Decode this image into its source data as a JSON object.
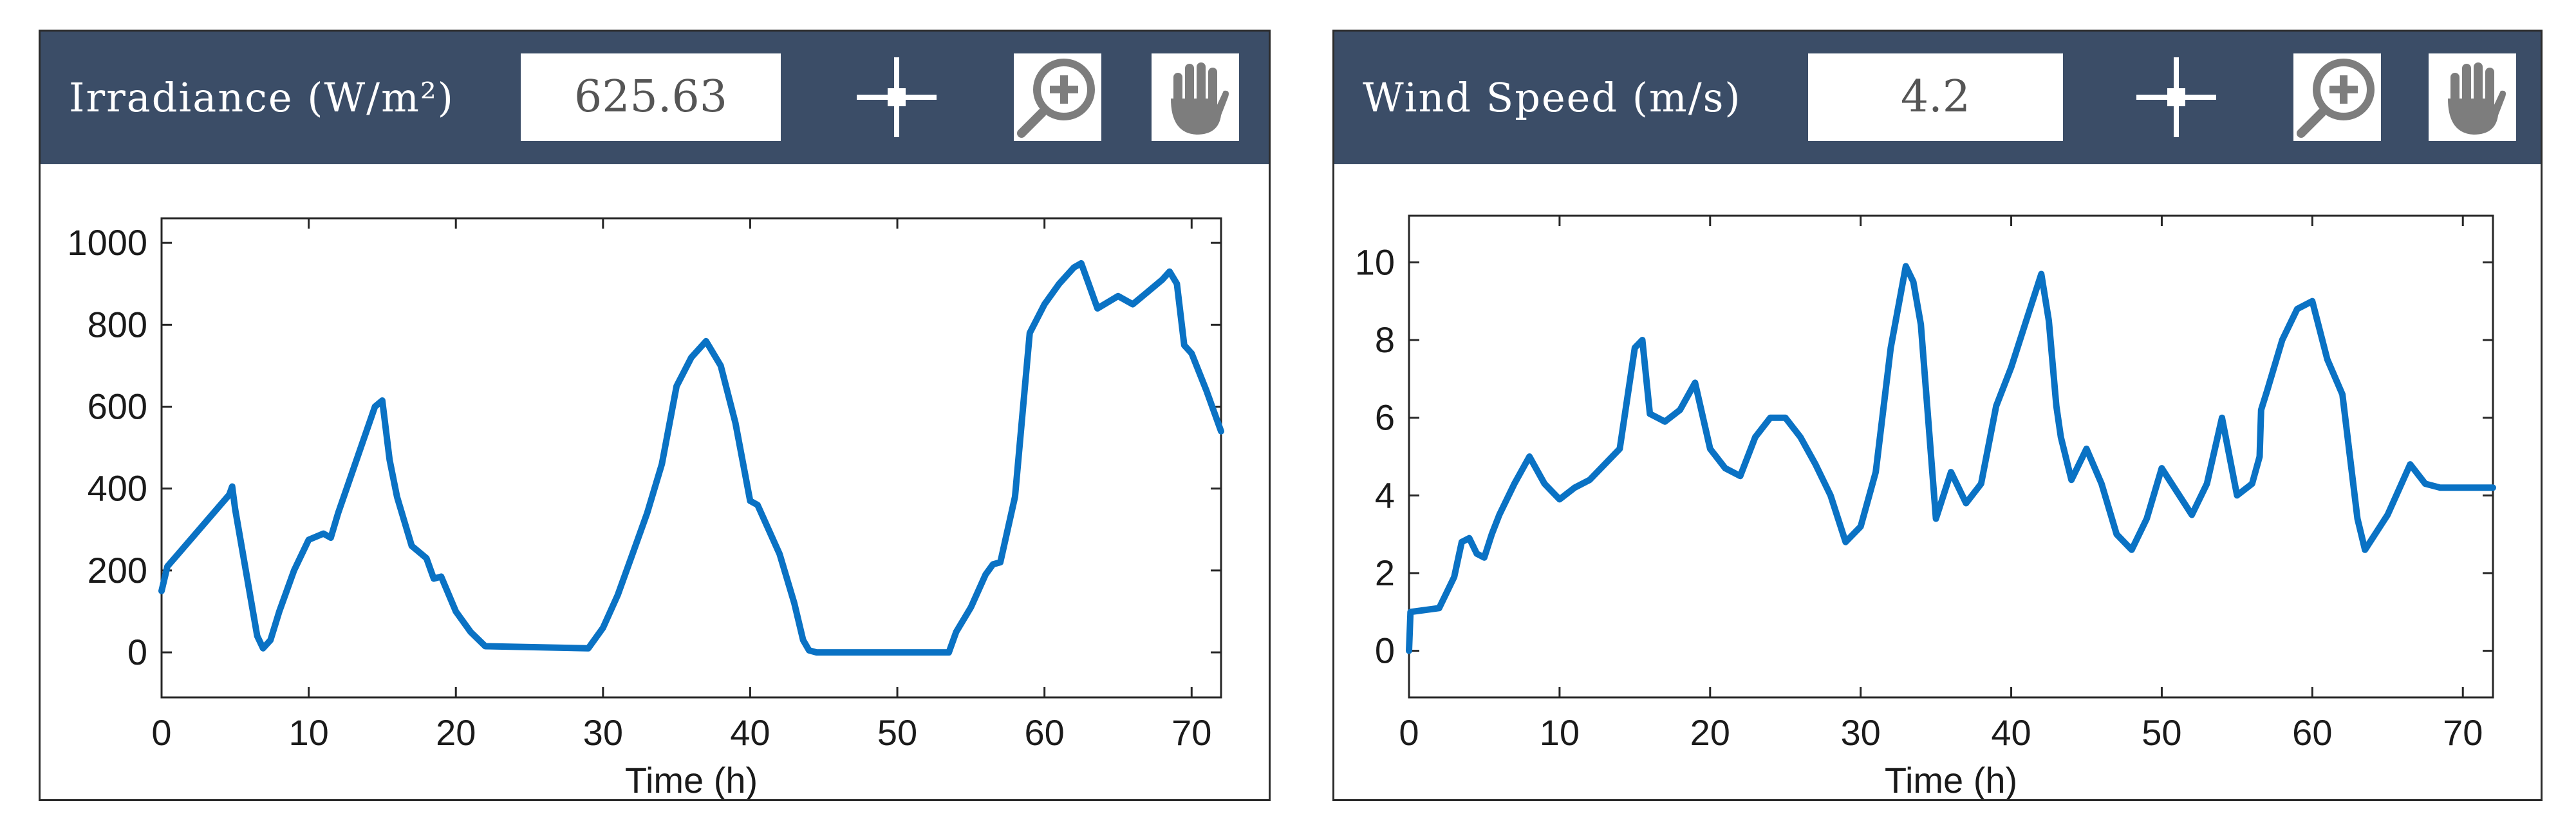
{
  "panels": [
    {
      "title": "Irradiance (W/m²)",
      "value": "625.63",
      "tools": {
        "crosshair": "crosshair-icon",
        "zoom": "zoom-in-icon",
        "pan": "pan-hand-icon"
      }
    },
    {
      "title": "Wind Speed (m/s)",
      "value": "4.2",
      "tools": {
        "crosshair": "crosshair-icon",
        "zoom": "zoom-in-icon",
        "pan": "pan-hand-icon"
      }
    }
  ],
  "colors": {
    "header_bg": "#3b4d67",
    "line": "#0a72c4"
  },
  "chart_data": [
    {
      "type": "line",
      "title": "",
      "xlabel": "Time (h)",
      "ylabel": "",
      "xlim": [
        0,
        72
      ],
      "ylim": [
        -110,
        1060
      ],
      "xticks": [
        0,
        10,
        20,
        30,
        40,
        50,
        60,
        70
      ],
      "yticks": [
        0,
        200,
        400,
        600,
        800,
        1000
      ],
      "grid": false,
      "series": [
        {
          "x": [
            0,
            0.4,
            1,
            4.6,
            4.8,
            5,
            6.5,
            6.9,
            7.4,
            8,
            9,
            10,
            11,
            11.5,
            12,
            14.5,
            15,
            15.5,
            16,
            17,
            18,
            18.5,
            19,
            20,
            21,
            22,
            29,
            30,
            31,
            32,
            33,
            34,
            35,
            36,
            37,
            38,
            39,
            40,
            40.5,
            42,
            43,
            43.6,
            44,
            44.5,
            53.5,
            54,
            55,
            56,
            56.5,
            57,
            58,
            59,
            60,
            61,
            62,
            62.5,
            63,
            63.6,
            65,
            66,
            67,
            68,
            68.5,
            69,
            69.5,
            70,
            71,
            72
          ],
          "y": [
            150,
            210,
            235,
            385,
            405,
            350,
            40,
            10,
            30,
            100,
            200,
            275,
            290,
            280,
            340,
            600,
            615,
            470,
            380,
            260,
            230,
            180,
            185,
            100,
            50,
            15,
            10,
            60,
            140,
            240,
            340,
            460,
            650,
            720,
            760,
            700,
            560,
            370,
            360,
            240,
            120,
            30,
            5,
            0,
            0,
            50,
            110,
            190,
            215,
            220,
            380,
            780,
            850,
            900,
            940,
            950,
            900,
            840,
            870,
            850,
            880,
            910,
            930,
            900,
            750,
            730,
            640,
            540
          ]
        }
      ]
    },
    {
      "type": "line",
      "title": "",
      "xlabel": "Time (h)",
      "ylabel": "",
      "xlim": [
        0,
        72
      ],
      "ylim": [
        -1.2,
        11.2
      ],
      "xticks": [
        0,
        10,
        20,
        30,
        40,
        50,
        60,
        70
      ],
      "yticks": [
        0,
        2,
        4,
        6,
        8,
        10
      ],
      "grid": false,
      "series": [
        {
          "x": [
            0,
            0.1,
            2,
            3,
            3.5,
            4,
            4.5,
            5,
            5.5,
            6,
            7,
            8,
            9,
            10,
            11,
            12,
            14,
            15,
            15.5,
            16,
            17,
            18,
            19,
            20,
            21,
            22,
            23,
            24,
            25,
            26,
            27,
            28,
            29,
            30,
            31,
            32,
            33,
            33.5,
            34,
            35,
            36,
            37,
            38,
            39,
            40,
            41,
            42,
            42.5,
            43,
            43.3,
            44,
            45,
            46,
            47,
            48,
            49,
            50,
            51,
            52,
            53,
            54,
            55,
            56,
            56.5,
            56.6,
            57,
            58,
            59,
            60,
            61,
            62,
            63,
            63.5,
            65,
            66.5,
            67.5,
            68.5,
            69,
            70,
            72
          ],
          "y": [
            0,
            1,
            1.1,
            1.9,
            2.8,
            2.9,
            2.5,
            2.4,
            3,
            3.5,
            4.3,
            5,
            4.3,
            3.9,
            4.2,
            4.4,
            5.2,
            7.8,
            8,
            6.1,
            5.9,
            6.2,
            6.9,
            5.2,
            4.7,
            4.5,
            5.5,
            6,
            6,
            5.5,
            4.8,
            4,
            2.8,
            3.2,
            4.6,
            7.8,
            9.9,
            9.5,
            8.4,
            3.4,
            4.6,
            3.8,
            4.3,
            6.3,
            7.3,
            8.5,
            9.7,
            8.5,
            6.3,
            5.5,
            4.4,
            5.2,
            4.3,
            3,
            2.6,
            3.4,
            4.7,
            4.1,
            3.5,
            4.3,
            6,
            4,
            4.3,
            5,
            6.2,
            6.7,
            8,
            8.8,
            9,
            7.5,
            6.6,
            3.4,
            2.6,
            3.5,
            4.8,
            4.3,
            4.2,
            4.2,
            4.2,
            4.2
          ],
          "_": "x values estimated from figure"
        }
      ]
    }
  ]
}
